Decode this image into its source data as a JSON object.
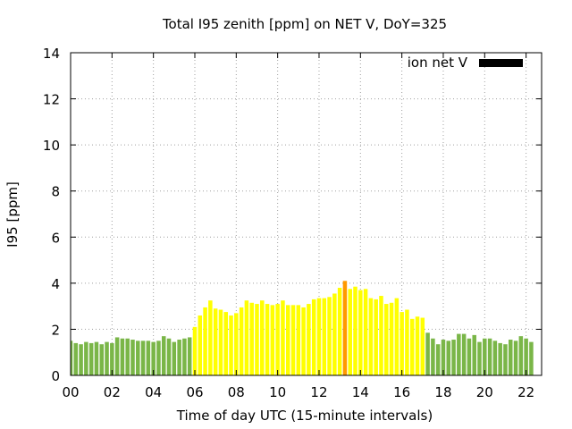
{
  "chart_data": {
    "type": "bar",
    "title": "Total I95 zenith [ppm] on NET V, DoY=325",
    "xlabel": "Time of day UTC (15-minute intervals)",
    "ylabel": "I95 [ppm]",
    "ylim": [
      0,
      14
    ],
    "yticks": [
      "0",
      "2",
      "4",
      "6",
      "8",
      "10",
      "12",
      "14"
    ],
    "xlim_hours": [
      0,
      22.75
    ],
    "xticks": [
      "00",
      "02",
      "04",
      "06",
      "08",
      "10",
      "12",
      "14",
      "16",
      "18",
      "20",
      "22"
    ],
    "grid": true,
    "legend": {
      "label": "ion net V",
      "placement": "top-right",
      "color": "#000000"
    },
    "colors": {
      "green": "#7ab648",
      "yellow": "#ffff00",
      "orange": "#ff9900"
    },
    "bar_interval_hours": 0.25,
    "series": [
      {
        "values": [
          1.5,
          1.4,
          1.35,
          1.45,
          1.4,
          1.45,
          1.35,
          1.45,
          1.4,
          1.65,
          1.6,
          1.6,
          1.55,
          1.5,
          1.5,
          1.5,
          1.45,
          1.5,
          1.7,
          1.6,
          1.45,
          1.55,
          1.6,
          1.65,
          2.1,
          2.6,
          2.95,
          3.25,
          2.9,
          2.85,
          2.75,
          2.6,
          2.7,
          2.95,
          3.25,
          3.15,
          3.1,
          3.25,
          3.1,
          3.05,
          3.1,
          3.25,
          3.05,
          3.05,
          3.05,
          2.95,
          3.1,
          3.3,
          3.35,
          3.35,
          3.4,
          3.55,
          3.8,
          4.1,
          3.75,
          3.85,
          3.7,
          3.75,
          3.35,
          3.3,
          3.45,
          3.1,
          3.15,
          3.35,
          2.75,
          2.85,
          2.45,
          2.55,
          2.5,
          1.85,
          1.6,
          1.35,
          1.55,
          1.5,
          1.55,
          1.8,
          1.8,
          1.6,
          1.75,
          1.45,
          1.6,
          1.6,
          1.5,
          1.4,
          1.35,
          1.55,
          1.5,
          1.7,
          1.6,
          1.45
        ],
        "colors": [
          "green",
          "green",
          "green",
          "green",
          "green",
          "green",
          "green",
          "green",
          "green",
          "green",
          "green",
          "green",
          "green",
          "green",
          "green",
          "green",
          "green",
          "green",
          "green",
          "green",
          "green",
          "green",
          "green",
          "green",
          "yellow",
          "yellow",
          "yellow",
          "yellow",
          "yellow",
          "yellow",
          "yellow",
          "yellow",
          "yellow",
          "yellow",
          "yellow",
          "yellow",
          "yellow",
          "yellow",
          "yellow",
          "yellow",
          "yellow",
          "yellow",
          "yellow",
          "yellow",
          "yellow",
          "yellow",
          "yellow",
          "yellow",
          "yellow",
          "yellow",
          "yellow",
          "yellow",
          "yellow",
          "orange",
          "yellow",
          "yellow",
          "yellow",
          "yellow",
          "yellow",
          "yellow",
          "yellow",
          "yellow",
          "yellow",
          "yellow",
          "yellow",
          "yellow",
          "yellow",
          "yellow",
          "yellow",
          "green",
          "green",
          "green",
          "green",
          "green",
          "green",
          "green",
          "green",
          "green",
          "green",
          "green",
          "green",
          "green",
          "green",
          "green",
          "green",
          "green",
          "green",
          "green",
          "green",
          "green"
        ]
      }
    ]
  }
}
